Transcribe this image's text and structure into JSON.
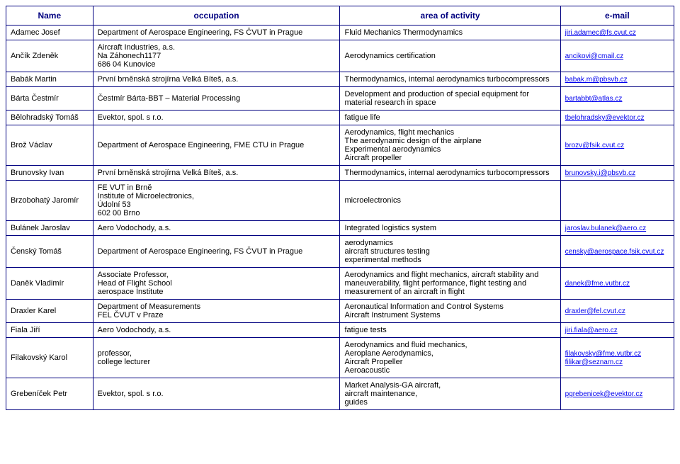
{
  "headers": [
    "Name",
    "occupation",
    "area of activity",
    "e-mail"
  ],
  "rows": [
    {
      "name": "Adamec Josef",
      "occupation": "Department of Aerospace Engineering, FS ČVUT in Prague",
      "area": "Fluid Mechanics Thermodynamics",
      "emails": [
        "jiri.adamec@fs.cvut.cz"
      ]
    },
    {
      "name": "Ančík Zdeněk",
      "occupation": "Aircraft Industries, a.s.\nNa Záhonech1177\n686 04  Kunovice",
      "area": "Aerodynamics certification",
      "emails": [
        "ancikovi@cmail.cz"
      ]
    },
    {
      "name": "Babák Martin",
      "occupation": "První brněnská strojírna Velká Bíteš, a.s.",
      "area": "Thermodynamics, internal aerodynamics turbocompressors",
      "emails": [
        "babak.m@pbsvb.cz"
      ]
    },
    {
      "name": "Bárta Čestmír",
      "occupation": "Čestmír Bárta-BBT – Material Processing",
      "area": "Development and production of special equipment for material research in space",
      "emails": [
        "bartabbt@atlas.cz"
      ]
    },
    {
      "name": "Bělohradský Tomáš",
      "occupation": "Evektor, spol. s r.o.",
      "area": "fatigue life",
      "emails": [
        "tbelohradsky@evektor.cz"
      ]
    },
    {
      "name": "Brož Václav",
      "occupation": "Department of Aerospace Engineering, FME CTU in Prague",
      "area": "Aerodynamics, flight mechanics\nThe aerodynamic design of the airplane\nExperimental aerodynamics\nAircraft propeller",
      "emails": [
        "brozv@fsik.cvut.cz"
      ]
    },
    {
      "name": "Brunovsky Ivan",
      "occupation": "První brněnská strojírna Velká Bíteš, a.s.",
      "area": "Thermodynamics, internal aerodynamics turbocompressors",
      "emails": [
        "brunovsky.i@pbsvb.cz"
      ]
    },
    {
      "name": "Brzobohatý Jaromír",
      "occupation": "FE VUT in Brně\nInstitute of Microelectronics,\nÚdolní 53\n602 00  Brno",
      "area": "microelectronics",
      "emails": []
    },
    {
      "name": "Bulánek Jaroslav",
      "occupation": "Aero Vodochody, a.s.",
      "area": "Integrated logistics system",
      "emails": [
        "jaroslav.bulanek@aero.cz"
      ]
    },
    {
      "name": "Čenský Tomáš",
      "occupation": "Department of Aerospace Engineering, FS ČVUT in Prague",
      "area": "aerodynamics\naircraft structures testing\nexperimental methods",
      "emails": [
        "censky@aerospace.fsik.cvut.cz"
      ]
    },
    {
      "name": "Daněk Vladimír",
      "occupation": "Associate Professor,\nHead of Flight School\naerospace Institute",
      "area": "Aerodynamics and flight mechanics, aircraft stability and maneuverability, flight performance, flight testing and measurement of an aircraft in flight",
      "emails": [
        "danek@fme.vutbr.cz"
      ]
    },
    {
      "name": "Draxler Karel",
      "occupation": "Department of Measurements\nFEL ČVUT v Praze",
      "area": "Aeronautical Information and Control Systems\nAircraft Instrument Systems",
      "emails": [
        "draxler@fel.cvut.cz"
      ]
    },
    {
      "name": "Fiala Jiří",
      "occupation": "Aero Vodochody, a.s.",
      "area": "fatigue tests",
      "emails": [
        "jiri.fiala@aero.cz"
      ]
    },
    {
      "name": "Filakovský Karol",
      "occupation": "professor,\ncollege lecturer",
      "area": "Aerodynamics and fluid mechanics,\nAeroplane Aerodynamics,\nAircraft Propeller\nAeroacoustic",
      "emails": [
        "filakovsky@fme.vutbr.cz",
        "filikar@seznam.cz"
      ]
    },
    {
      "name": "Grebeníček Petr",
      "occupation": "Evektor, spol. s r.o.",
      "area": "Market Analysis-GA aircraft,\n aircraft maintenance,\n guides",
      "emails": [
        "pgrebenicek@evektor.cz"
      ]
    }
  ]
}
